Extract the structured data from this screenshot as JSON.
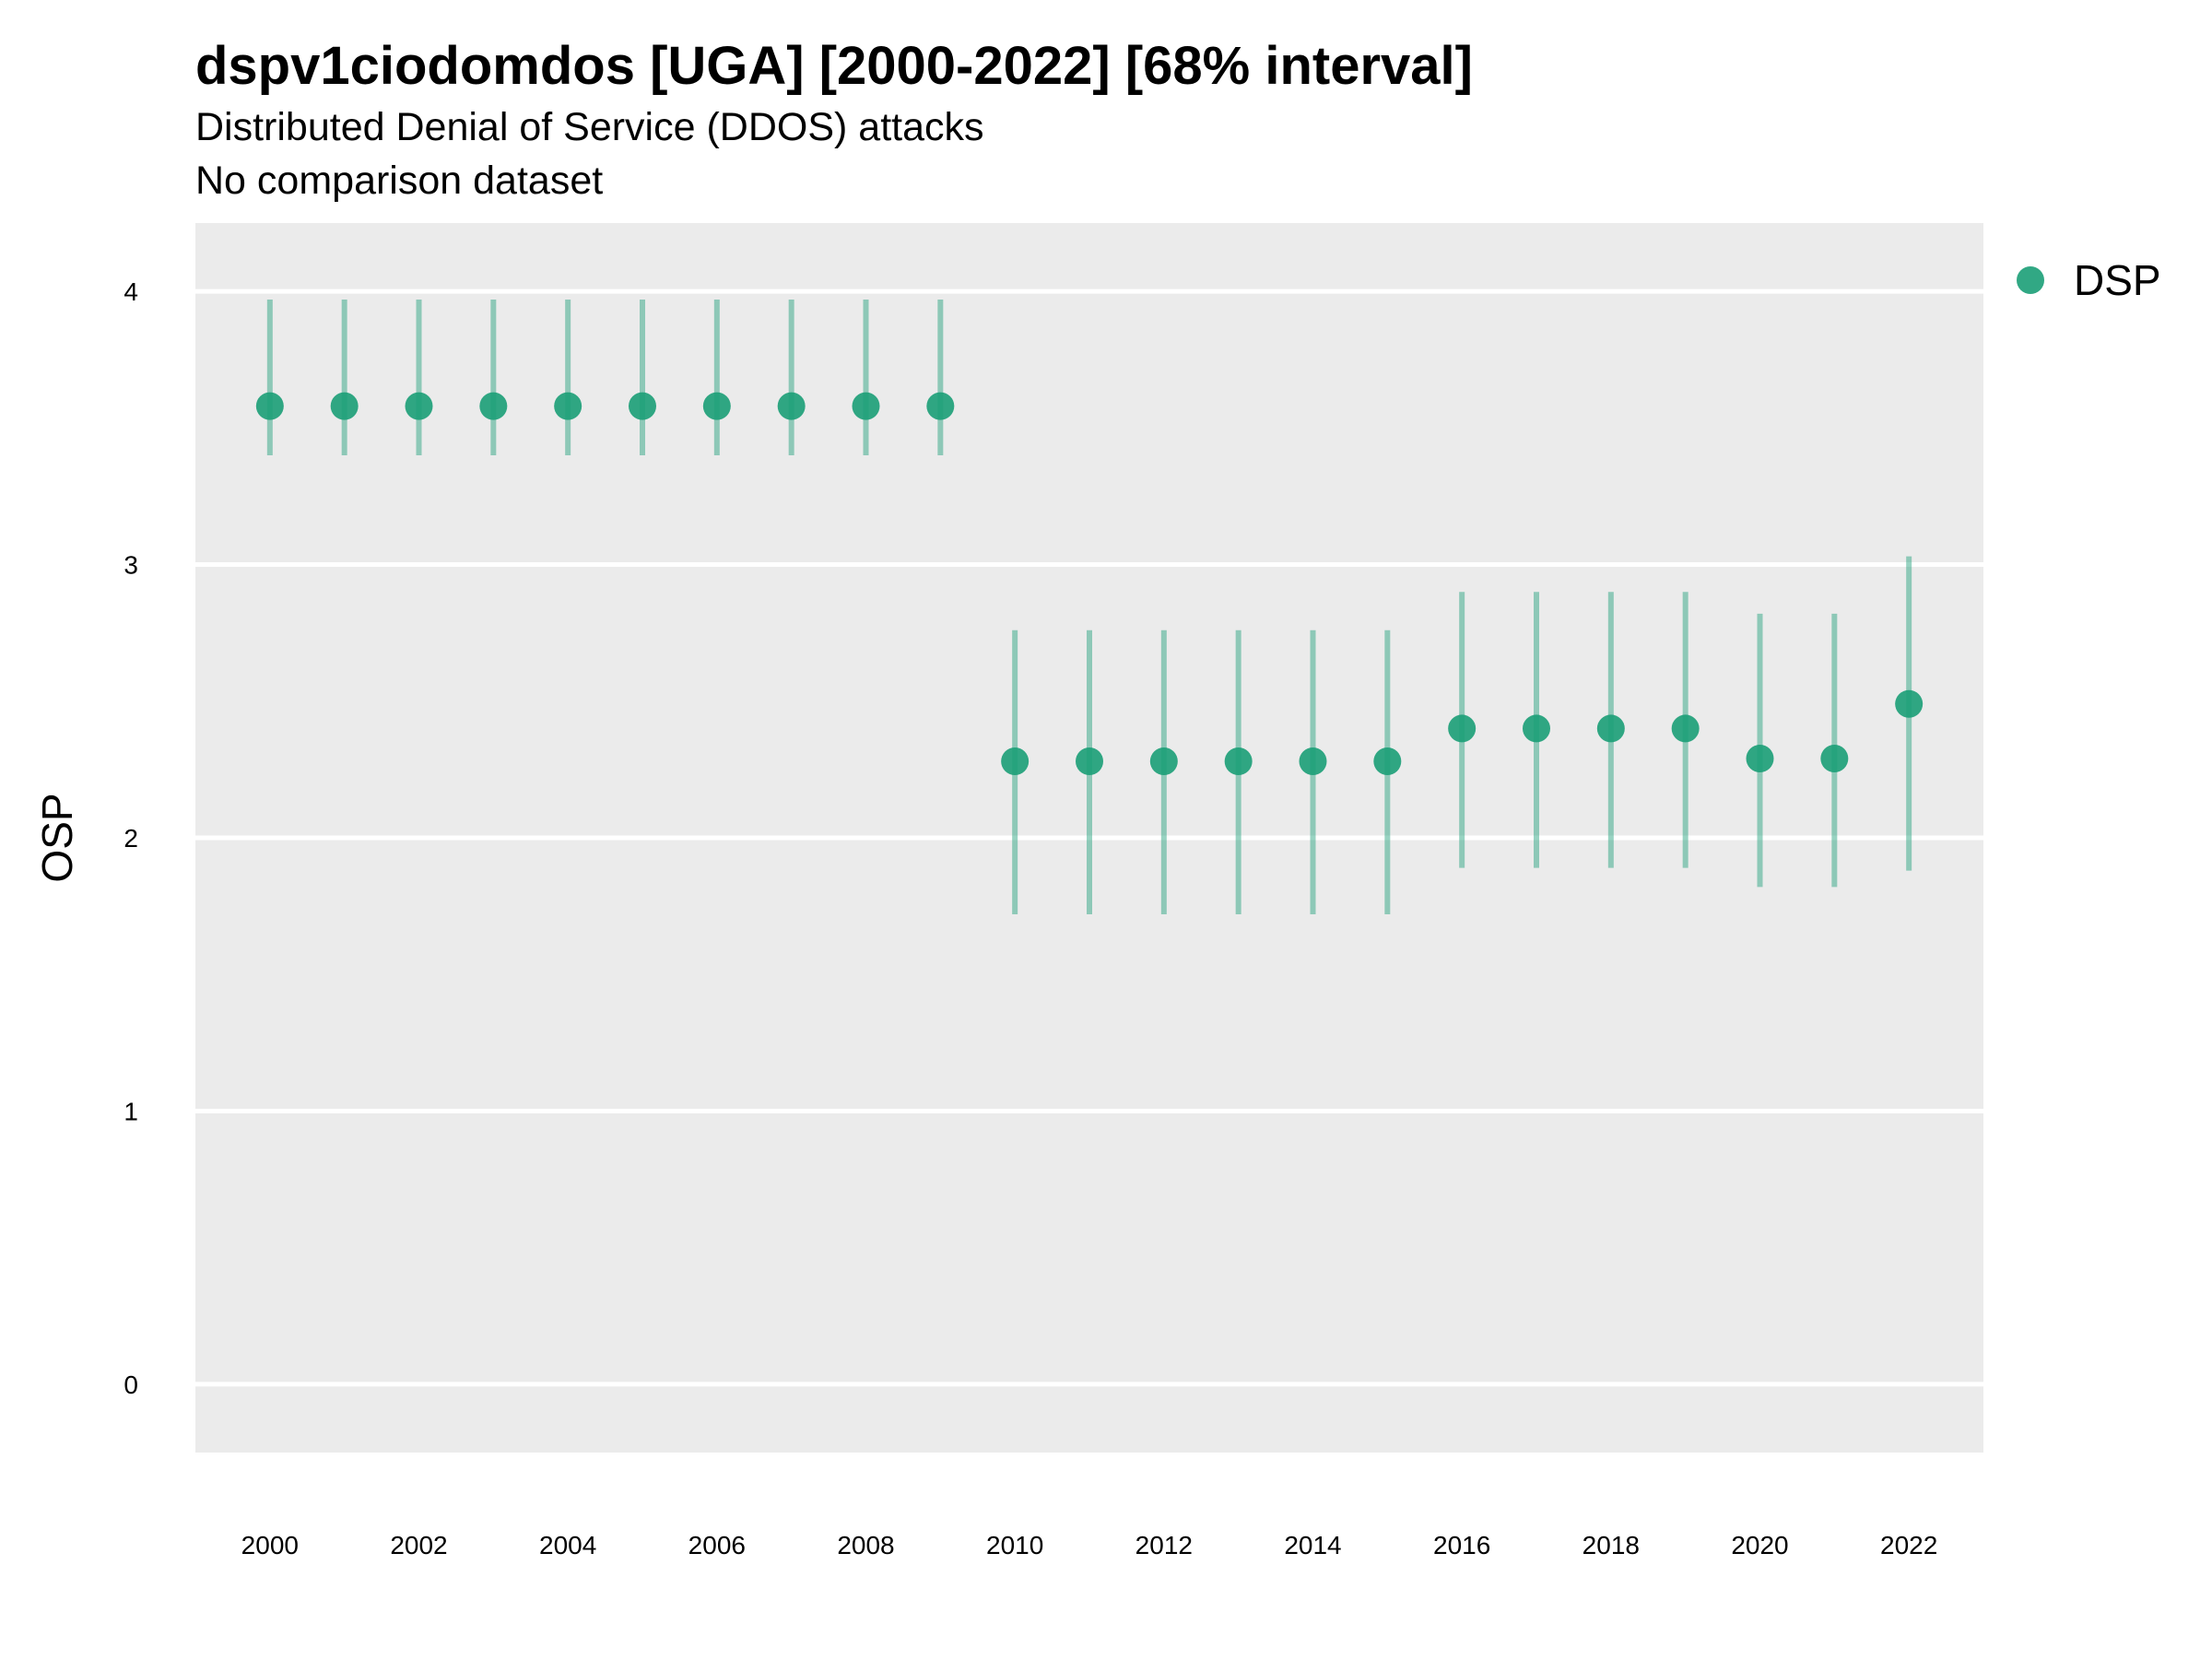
{
  "chart_data": {
    "type": "scatter",
    "title": "dspv1ciodomdos [UGA] [2000-2022] [68% interval]",
    "subtitle": "Distributed Denial of Service (DDOS) attacks",
    "subtitle2": "No comparison dataset",
    "xlabel": "",
    "ylabel": "OSP",
    "xlim": [
      1999.0,
      2023.0
    ],
    "ylim": [
      -0.25,
      4.25
    ],
    "x_ticks": [
      2000,
      2002,
      2004,
      2006,
      2008,
      2010,
      2012,
      2014,
      2016,
      2018,
      2020,
      2022
    ],
    "y_ticks": [
      0,
      1,
      2,
      3,
      4
    ],
    "grid": true,
    "legend_position": "right",
    "series": [
      {
        "name": "DSP",
        "color": "#1b9e77",
        "x": [
          2000,
          2001,
          2002,
          2003,
          2004,
          2005,
          2006,
          2007,
          2008,
          2009,
          2010,
          2011,
          2012,
          2013,
          2014,
          2015,
          2016,
          2017,
          2018,
          2019,
          2020,
          2021,
          2022
        ],
        "y": [
          3.58,
          3.58,
          3.58,
          3.58,
          3.58,
          3.58,
          3.58,
          3.58,
          3.58,
          3.58,
          2.28,
          2.28,
          2.28,
          2.28,
          2.28,
          2.28,
          2.4,
          2.4,
          2.4,
          2.4,
          2.29,
          2.29,
          2.49
        ],
        "lower": [
          3.4,
          3.4,
          3.4,
          3.4,
          3.4,
          3.4,
          3.4,
          3.4,
          3.4,
          3.4,
          1.72,
          1.72,
          1.72,
          1.72,
          1.72,
          1.72,
          1.89,
          1.89,
          1.89,
          1.89,
          1.82,
          1.82,
          1.88
        ],
        "upper": [
          3.97,
          3.97,
          3.97,
          3.97,
          3.97,
          3.97,
          3.97,
          3.97,
          3.97,
          3.97,
          2.76,
          2.76,
          2.76,
          2.76,
          2.76,
          2.76,
          2.9,
          2.9,
          2.9,
          2.9,
          2.82,
          2.82,
          3.03
        ]
      }
    ]
  }
}
